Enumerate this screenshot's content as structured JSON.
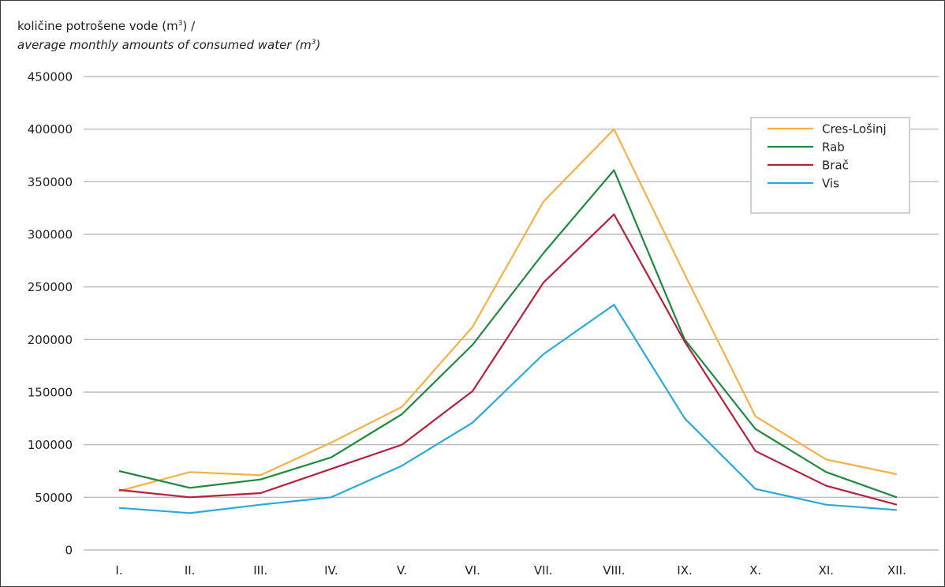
{
  "chart_data": {
    "type": "line",
    "ylabel_line1": "količine potrošene vode (m",
    "ylabel_line1_sup": "3",
    "ylabel_line1_end": ") /",
    "ylabel_line2": "average monthly amounts of consumed water (m",
    "ylabel_line2_sup": "3",
    "ylabel_line2_end": ")",
    "categories": [
      "I.",
      "II.",
      "III.",
      "IV.",
      "V.",
      "VI.",
      "VII.",
      "VIII.",
      "IX.",
      "X.",
      "XI.",
      "XII."
    ],
    "yticks": [
      0,
      50000,
      100000,
      150000,
      200000,
      250000,
      300000,
      350000,
      400000,
      450000
    ],
    "ylim": [
      0,
      450000
    ],
    "grid": "horizontal",
    "legend_position": "top-right",
    "series": [
      {
        "name": "Cres-Lošinj",
        "color": "#f7b042",
        "values": [
          56000,
          74000,
          71000,
          102000,
          136000,
          212000,
          331000,
          400000,
          262000,
          127000,
          86000,
          72000
        ]
      },
      {
        "name": "Rab",
        "color": "#1e8a3e",
        "values": [
          75000,
          59000,
          67000,
          88000,
          129000,
          195000,
          282000,
          361000,
          200000,
          115000,
          74000,
          50000
        ]
      },
      {
        "name": "Brač",
        "color": "#b5213a",
        "values": [
          57000,
          50000,
          54000,
          77000,
          100000,
          151000,
          254000,
          319000,
          198000,
          94000,
          61000,
          43000
        ]
      },
      {
        "name": "Vis",
        "color": "#2aa9df",
        "values": [
          40000,
          35000,
          43000,
          50000,
          80000,
          121000,
          186000,
          233000,
          125000,
          58000,
          43000,
          38000
        ]
      }
    ]
  }
}
